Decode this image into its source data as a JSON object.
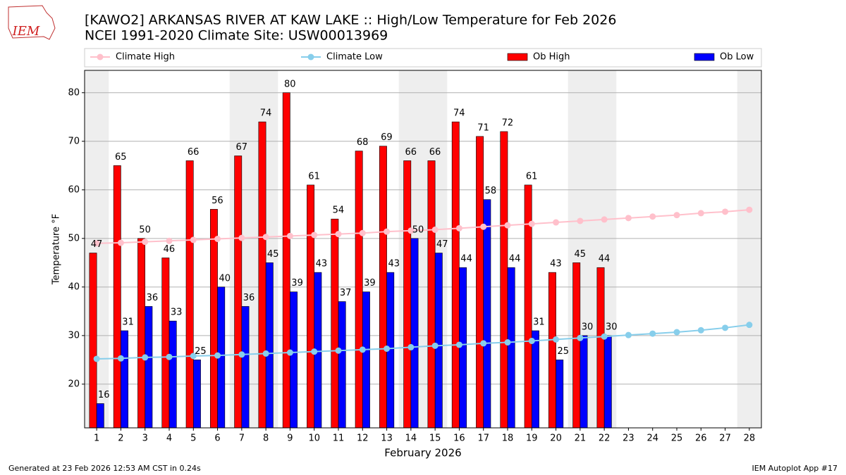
{
  "chart_data": {
    "type": "bar",
    "title": "[KAWO2] ARKANSAS RIVER  AT KAW LAKE :: High/Low Temperature for Feb 2026",
    "subtitle": "NCEI 1991-2020 Climate Site: USW00013969",
    "x_label": "February 2026",
    "y_label": "Temperature °F",
    "logo": "IEM",
    "footer_left": "Generated at 23 Feb 2026 12:53 AM CST in 0.24s",
    "footer_right": "IEM Autoplot App #17",
    "x": [
      1,
      2,
      3,
      4,
      5,
      6,
      7,
      8,
      9,
      10,
      11,
      12,
      13,
      14,
      15,
      16,
      17,
      18,
      19,
      20,
      21,
      22,
      23,
      24,
      25,
      26,
      27,
      28
    ],
    "xlim": [
      0.5,
      28.5
    ],
    "xticks": [
      1,
      2,
      3,
      4,
      5,
      6,
      7,
      8,
      9,
      10,
      11,
      12,
      13,
      14,
      15,
      16,
      17,
      18,
      19,
      20,
      21,
      22,
      23,
      24,
      25,
      26,
      27,
      28
    ],
    "ylim": [
      11,
      84.6
    ],
    "yticks": [
      20,
      30,
      40,
      50,
      60,
      70,
      80
    ],
    "grid": true,
    "shaded_x": [
      1,
      7,
      8,
      14,
      15,
      21,
      22,
      28
    ],
    "series": [
      {
        "name": "Climate High",
        "type": "line",
        "color": "#ffc0cb",
        "values": [
          49.0,
          49.1,
          49.3,
          49.5,
          49.7,
          49.9,
          50.1,
          50.3,
          50.5,
          50.7,
          50.9,
          51.1,
          51.4,
          51.6,
          51.8,
          52.1,
          52.4,
          52.7,
          53.0,
          53.3,
          53.6,
          53.9,
          54.2,
          54.5,
          54.8,
          55.2,
          55.5,
          55.9
        ]
      },
      {
        "name": "Climate Low",
        "type": "line",
        "color": "#87ceeb",
        "values": [
          25.2,
          25.3,
          25.5,
          25.6,
          25.8,
          25.9,
          26.1,
          26.3,
          26.5,
          26.7,
          26.9,
          27.1,
          27.3,
          27.6,
          27.9,
          28.1,
          28.4,
          28.6,
          28.9,
          29.2,
          29.5,
          29.8,
          30.1,
          30.4,
          30.7,
          31.1,
          31.6,
          32.2
        ]
      },
      {
        "name": "Ob High",
        "type": "bar",
        "color": "#ff0000",
        "values": [
          47,
          65,
          50,
          46,
          66,
          56,
          67,
          74,
          80,
          61,
          54,
          68,
          69,
          66,
          66,
          74,
          71,
          72,
          61,
          43,
          45,
          44,
          null,
          null,
          null,
          null,
          null,
          null
        ]
      },
      {
        "name": "Ob Low",
        "type": "bar",
        "color": "#0000ff",
        "values": [
          16,
          31,
          36,
          33,
          25,
          40,
          36,
          45,
          39,
          43,
          37,
          39,
          43,
          50,
          47,
          44,
          58,
          44,
          31,
          25,
          30,
          30,
          null,
          null,
          null,
          null,
          null,
          null
        ]
      }
    ]
  }
}
